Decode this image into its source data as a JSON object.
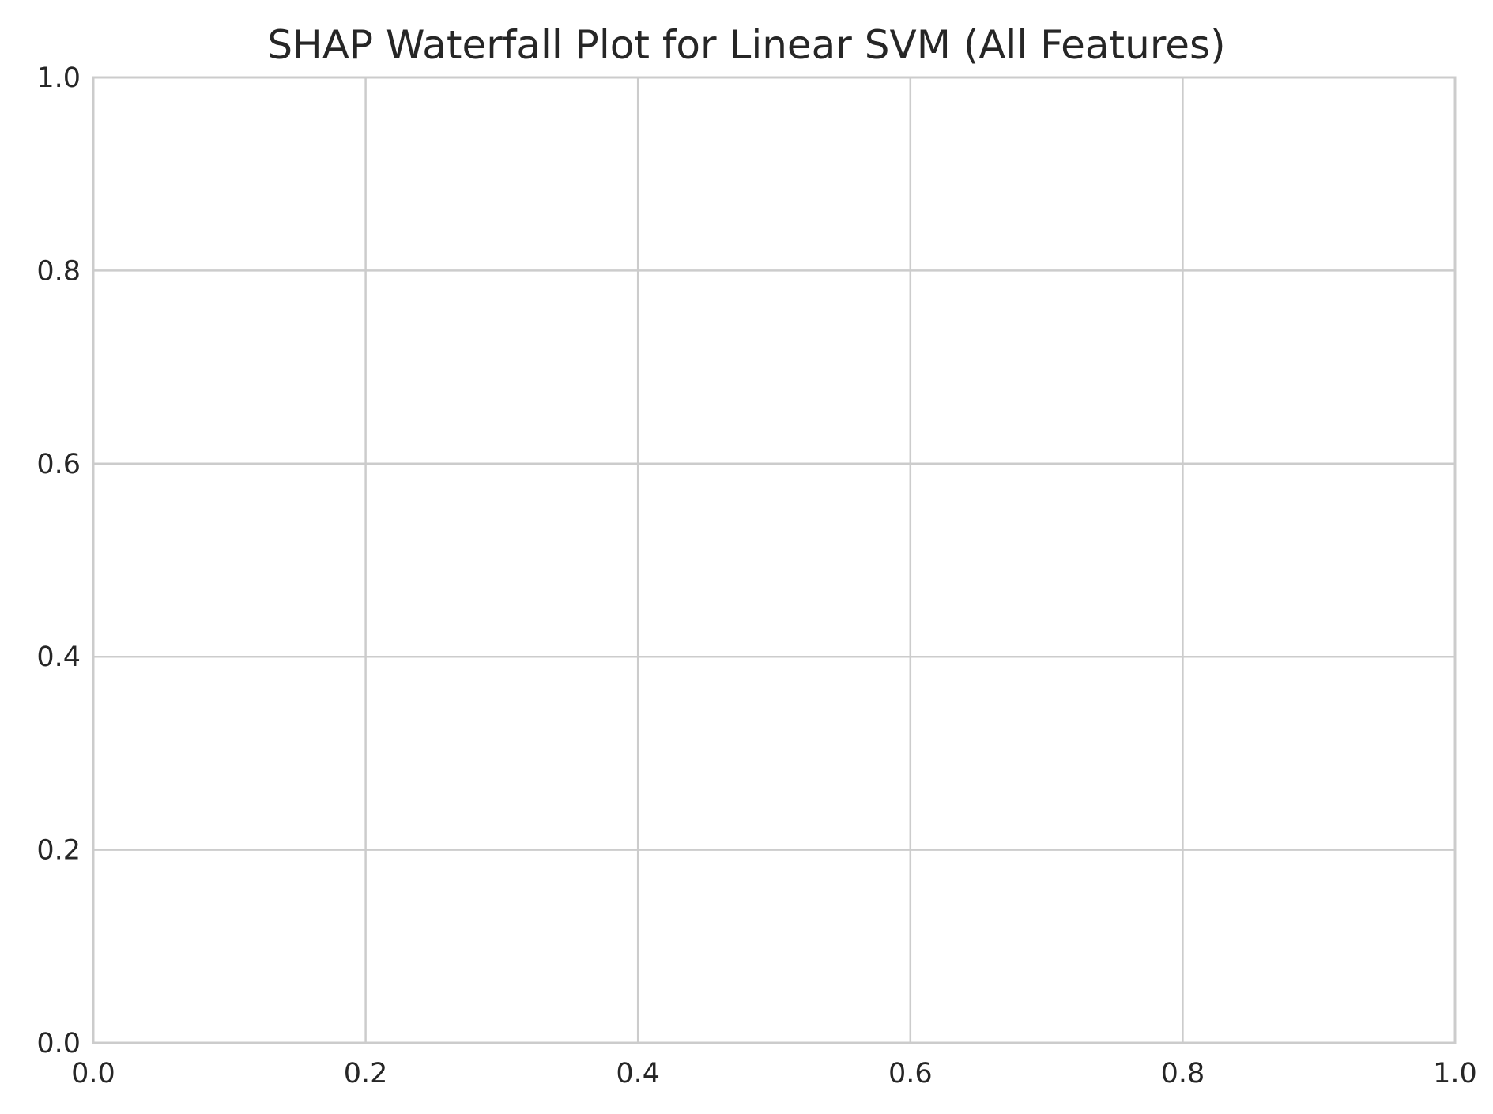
{
  "chart_data": {
    "type": "bar",
    "title": "SHAP Waterfall Plot for Linear SVM (All Features)",
    "xlabel": "",
    "ylabel": "",
    "xlim": [
      0.0,
      1.0
    ],
    "ylim": [
      0.0,
      1.0
    ],
    "x_ticks": [
      "0.0",
      "0.2",
      "0.4",
      "0.6",
      "0.8",
      "1.0"
    ],
    "y_ticks": [
      "0.0",
      "0.2",
      "0.4",
      "0.6",
      "0.8",
      "1.0"
    ],
    "x_tick_values": [
      0.0,
      0.2,
      0.4,
      0.6,
      0.8,
      1.0
    ],
    "y_tick_values": [
      0.0,
      0.2,
      0.4,
      0.6,
      0.8,
      1.0
    ],
    "grid": true,
    "series": [],
    "colors": {
      "grid": "#cccccc",
      "frame": "#cccccc",
      "text": "#262626",
      "background": "#ffffff"
    }
  }
}
